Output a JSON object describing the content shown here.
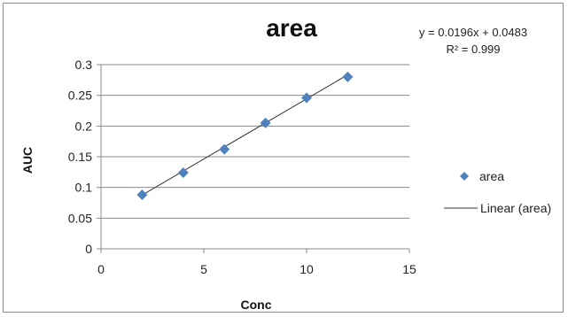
{
  "chart_data": {
    "type": "scatter",
    "title": "area",
    "xlabel": "Conc",
    "ylabel": "AUC",
    "xlim": [
      0,
      15
    ],
    "ylim": [
      0,
      0.3
    ],
    "x_ticks": [
      "0",
      "5",
      "10",
      "15"
    ],
    "y_ticks": [
      "0",
      "0.05",
      "0.1",
      "0.15",
      "0.2",
      "0.25",
      "0.3"
    ],
    "grid": "horizontal",
    "legend_position": "right",
    "series": [
      {
        "name": "area",
        "marker": "diamond",
        "color": "#4f81bd",
        "x": [
          2,
          4,
          6,
          8,
          10,
          12
        ],
        "y": [
          0.088,
          0.124,
          0.162,
          0.205,
          0.246,
          0.28
        ]
      }
    ],
    "trendline": {
      "name": "Linear (area)",
      "color": "#333333",
      "slope": 0.0196,
      "intercept": 0.0483,
      "x_range": [
        2,
        12
      ],
      "equation": "y = 0.0196x + 0.0483",
      "r_squared_label": "R² = 0.999"
    }
  }
}
